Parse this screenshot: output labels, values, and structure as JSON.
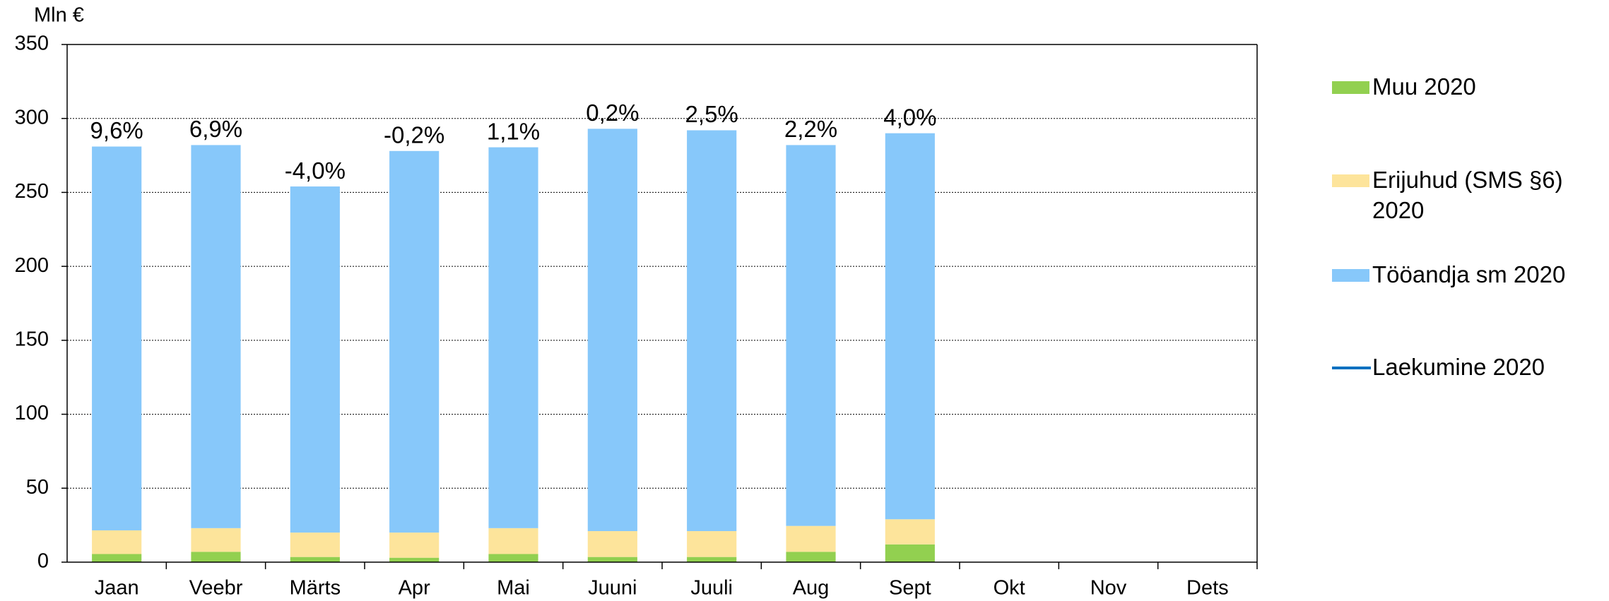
{
  "chart_data": {
    "type": "stacked_bar",
    "y_axis_label": "Mln €",
    "categories": [
      "Jaan",
      "Veebr",
      "Märts",
      "Apr",
      "Mai",
      "Juuni",
      "Juuli",
      "Aug",
      "Sept",
      "Okt",
      "Nov",
      "Dets"
    ],
    "series": [
      {
        "name": "Muu 2020",
        "color": "#92d050",
        "values": [
          5.5,
          7,
          3.5,
          3,
          5.5,
          3.5,
          3.5,
          7,
          12,
          null,
          null,
          null
        ]
      },
      {
        "name": "Erijuhud (SMS §6) 2020",
        "color": "#fde49b",
        "values": [
          16,
          16,
          16.5,
          17,
          17.5,
          17.5,
          17.5,
          17.5,
          17,
          null,
          null,
          null
        ]
      },
      {
        "name": "Tööandja sm 2020",
        "color": "#87c8fa",
        "values": [
          259.5,
          259,
          234,
          258,
          257.5,
          272,
          271,
          257.5,
          261,
          null,
          null,
          null
        ]
      },
      {
        "name": "Laekumine 2020",
        "color": "#0070c0",
        "type": "line",
        "values": [
          null,
          null,
          null,
          null,
          null,
          null,
          null,
          null,
          null,
          null,
          null,
          null
        ]
      }
    ],
    "growth_labels": [
      "9,6%",
      "6,9%",
      "-4,0%",
      "-0,2%",
      "1,1%",
      "0,2%",
      "2,5%",
      "2,2%",
      "4,0%",
      null,
      null,
      null
    ],
    "ylim": [
      0,
      350
    ],
    "yticks": [
      0,
      50,
      100,
      150,
      200,
      250,
      300,
      350
    ],
    "grid": true,
    "legend": "right"
  }
}
